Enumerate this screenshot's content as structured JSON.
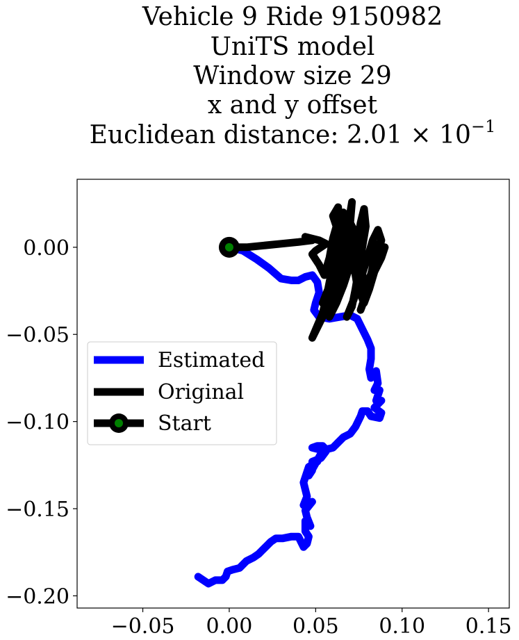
{
  "chart_data": {
    "type": "line",
    "title_lines": [
      "Vehicle 9 Ride 9150982",
      "UniTS model",
      "Window size 29",
      "x and y offset"
    ],
    "subtitle": {
      "prefix": "Euclidean distance: ",
      "value": "2.01 × 10",
      "exponent": "−1"
    },
    "xlabel": "",
    "ylabel": "",
    "xlim": [
      -0.088,
      0.162
    ],
    "ylim": [
      -0.207,
      0.039
    ],
    "xticks": [
      {
        "value": -0.05,
        "label": "−0.05"
      },
      {
        "value": 0.0,
        "label": "0.00"
      },
      {
        "value": 0.05,
        "label": "0.05"
      },
      {
        "value": 0.1,
        "label": "0.10"
      },
      {
        "value": 0.15,
        "label": "0.15"
      }
    ],
    "yticks": [
      {
        "value": 0.0,
        "label": "0.00"
      },
      {
        "value": -0.05,
        "label": "−0.05"
      },
      {
        "value": -0.1,
        "label": "−0.10"
      },
      {
        "value": -0.15,
        "label": "−0.15"
      },
      {
        "value": -0.2,
        "label": "−0.20"
      }
    ],
    "grid": false,
    "legend": {
      "placement": "center-left",
      "entries": [
        {
          "label": "Estimated",
          "color": "#0000ff",
          "marker": false
        },
        {
          "label": "Original",
          "color": "#000000",
          "marker": false
        },
        {
          "label": "Start",
          "color": "#000000",
          "marker": true,
          "marker_face": "#008000"
        }
      ]
    },
    "series": [
      {
        "name": "Estimated",
        "color": "#0000ff",
        "points": [
          [
            0.0,
            0.0
          ],
          [
            0.008,
            -0.002
          ],
          [
            0.016,
            -0.007
          ],
          [
            0.023,
            -0.012
          ],
          [
            0.03,
            -0.018
          ],
          [
            0.036,
            -0.019
          ],
          [
            0.04,
            -0.019
          ],
          [
            0.044,
            -0.017
          ],
          [
            0.048,
            -0.016
          ],
          [
            0.051,
            -0.02
          ],
          [
            0.052,
            -0.026
          ],
          [
            0.05,
            -0.032
          ],
          [
            0.049,
            -0.036
          ],
          [
            0.052,
            -0.04
          ],
          [
            0.058,
            -0.041
          ],
          [
            0.064,
            -0.04
          ],
          [
            0.07,
            -0.039
          ],
          [
            0.074,
            -0.041
          ],
          [
            0.077,
            -0.047
          ],
          [
            0.08,
            -0.053
          ],
          [
            0.082,
            -0.058
          ],
          [
            0.082,
            -0.064
          ],
          [
            0.081,
            -0.07
          ],
          [
            0.082,
            -0.075
          ],
          [
            0.085,
            -0.071
          ],
          [
            0.086,
            -0.078
          ],
          [
            0.084,
            -0.082
          ],
          [
            0.087,
            -0.082
          ],
          [
            0.085,
            -0.088
          ],
          [
            0.088,
            -0.088
          ],
          [
            0.084,
            -0.092
          ],
          [
            0.088,
            -0.095
          ],
          [
            0.087,
            -0.098
          ],
          [
            0.082,
            -0.097
          ],
          [
            0.08,
            -0.094
          ],
          [
            0.077,
            -0.094
          ],
          [
            0.076,
            -0.097
          ],
          [
            0.073,
            -0.103
          ],
          [
            0.07,
            -0.107
          ],
          [
            0.066,
            -0.109
          ],
          [
            0.063,
            -0.112
          ],
          [
            0.06,
            -0.115
          ],
          [
            0.056,
            -0.116
          ],
          [
            0.054,
            -0.114
          ],
          [
            0.051,
            -0.114
          ],
          [
            0.048,
            -0.115
          ],
          [
            0.056,
            -0.117
          ],
          [
            0.053,
            -0.121
          ],
          [
            0.048,
            -0.123
          ],
          [
            0.048,
            -0.128
          ],
          [
            0.046,
            -0.131
          ],
          [
            0.055,
            -0.115
          ],
          [
            0.051,
            -0.123
          ],
          [
            0.046,
            -0.126
          ],
          [
            0.043,
            -0.135
          ],
          [
            0.045,
            -0.143
          ],
          [
            0.043,
            -0.148
          ],
          [
            0.048,
            -0.146
          ],
          [
            0.044,
            -0.151
          ],
          [
            0.045,
            -0.155
          ],
          [
            0.047,
            -0.16
          ],
          [
            0.044,
            -0.157
          ],
          [
            0.044,
            -0.163
          ],
          [
            0.046,
            -0.166
          ],
          [
            0.045,
            -0.17
          ],
          [
            0.043,
            -0.172
          ],
          [
            0.04,
            -0.166
          ],
          [
            0.036,
            -0.166
          ],
          [
            0.031,
            -0.167
          ],
          [
            0.027,
            -0.167
          ],
          [
            0.024,
            -0.169
          ],
          [
            0.02,
            -0.173
          ],
          [
            0.017,
            -0.176
          ],
          [
            0.014,
            -0.178
          ],
          [
            0.01,
            -0.18
          ],
          [
            0.006,
            -0.184
          ],
          [
            0.002,
            -0.185
          ],
          [
            -0.001,
            -0.186
          ],
          [
            -0.002,
            -0.189
          ],
          [
            -0.004,
            -0.191
          ],
          [
            -0.008,
            -0.191
          ],
          [
            -0.012,
            -0.193
          ],
          [
            -0.015,
            -0.191
          ],
          [
            -0.018,
            -0.189
          ]
        ]
      },
      {
        "name": "Original",
        "color": "#000000",
        "points": [
          [
            0.0,
            0.0
          ],
          [
            0.01,
            0.0
          ],
          [
            0.02,
            0.001
          ],
          [
            0.03,
            0.002
          ],
          [
            0.04,
            0.003
          ],
          [
            0.048,
            0.004
          ],
          [
            0.044,
            0.006
          ],
          [
            0.052,
            0.004
          ],
          [
            0.056,
            0.002
          ],
          [
            0.05,
            -0.002
          ],
          [
            0.048,
            -0.004
          ],
          [
            0.052,
            -0.01
          ],
          [
            0.055,
            -0.016
          ],
          [
            0.058,
            -0.006
          ],
          [
            0.06,
            0.005
          ],
          [
            0.062,
            0.012
          ],
          [
            0.06,
            0.018
          ],
          [
            0.063,
            0.023
          ],
          [
            0.064,
            0.01
          ],
          [
            0.062,
            0.0
          ],
          [
            0.06,
            -0.01
          ],
          [
            0.058,
            -0.02
          ],
          [
            0.056,
            -0.03
          ],
          [
            0.054,
            -0.038
          ],
          [
            0.051,
            -0.045
          ],
          [
            0.048,
            -0.052
          ],
          [
            0.054,
            -0.04
          ],
          [
            0.06,
            -0.028
          ],
          [
            0.064,
            -0.016
          ],
          [
            0.066,
            -0.004
          ],
          [
            0.068,
            0.008
          ],
          [
            0.07,
            0.02
          ],
          [
            0.071,
            0.026
          ],
          [
            0.07,
            0.014
          ],
          [
            0.068,
            0.0
          ],
          [
            0.066,
            -0.012
          ],
          [
            0.063,
            -0.024
          ],
          [
            0.06,
            -0.034
          ],
          [
            0.058,
            -0.04
          ],
          [
            0.062,
            -0.032
          ],
          [
            0.066,
            -0.022
          ],
          [
            0.07,
            -0.01
          ],
          [
            0.074,
            0.002
          ],
          [
            0.076,
            0.014
          ],
          [
            0.078,
            0.022
          ],
          [
            0.079,
            0.012
          ],
          [
            0.077,
            0.0
          ],
          [
            0.075,
            -0.012
          ],
          [
            0.073,
            -0.024
          ],
          [
            0.071,
            -0.034
          ],
          [
            0.068,
            -0.04
          ],
          [
            0.072,
            -0.03
          ],
          [
            0.076,
            -0.018
          ],
          [
            0.08,
            -0.006
          ],
          [
            0.083,
            0.004
          ],
          [
            0.086,
            0.01
          ],
          [
            0.088,
            0.004
          ],
          [
            0.086,
            -0.004
          ],
          [
            0.083,
            -0.012
          ],
          [
            0.08,
            -0.022
          ],
          [
            0.078,
            -0.03
          ],
          [
            0.076,
            -0.036
          ],
          [
            0.079,
            -0.028
          ],
          [
            0.082,
            -0.018
          ],
          [
            0.085,
            -0.008
          ],
          [
            0.087,
            -0.002
          ],
          [
            0.09,
            0.0
          ],
          [
            0.088,
            -0.006
          ],
          [
            0.084,
            -0.014
          ],
          [
            0.081,
            -0.024
          ],
          [
            0.078,
            -0.032
          ],
          [
            0.074,
            -0.022
          ],
          [
            0.072,
            -0.01
          ],
          [
            0.07,
            0.002
          ],
          [
            0.068,
            0.014
          ],
          [
            0.066,
            0.02
          ],
          [
            0.064,
            0.008
          ],
          [
            0.062,
            -0.004
          ],
          [
            0.06,
            -0.016
          ],
          [
            0.057,
            -0.026
          ],
          [
            0.054,
            -0.032
          ],
          [
            0.058,
            -0.022
          ],
          [
            0.062,
            -0.01
          ],
          [
            0.064,
            0.002
          ],
          [
            0.066,
            0.012
          ],
          [
            0.068,
            0.018
          ],
          [
            0.072,
            0.01
          ],
          [
            0.074,
            0.0
          ],
          [
            0.076,
            -0.01
          ],
          [
            0.078,
            -0.02
          ],
          [
            0.08,
            -0.026
          ],
          [
            0.082,
            -0.016
          ],
          [
            0.084,
            -0.006
          ],
          [
            0.085,
            0.002
          ]
        ]
      }
    ],
    "start_point": {
      "x": 0.0,
      "y": 0.0,
      "label": "Start",
      "color": "#000000",
      "face_color": "#008000"
    }
  }
}
